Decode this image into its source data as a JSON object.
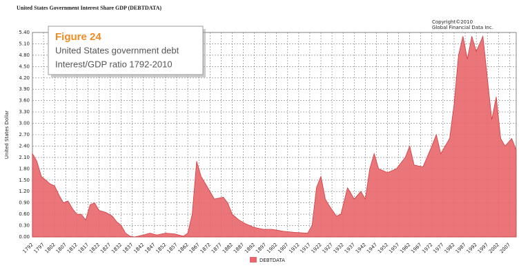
{
  "chart_data": {
    "type": "area",
    "title": "United States  Government Interest Share GDP (DEBTDATA)",
    "copyright": [
      "Copyright©2010",
      "Global Financial Data Inc."
    ],
    "figure_label": "Figure 24",
    "figure_caption": [
      "United States government debt",
      "Interest/GDP ratio 1792-2010"
    ],
    "y_label": "United States Dollar",
    "x": [
      1792,
      1794,
      1796,
      1798,
      1800,
      1802,
      1804,
      1806,
      1808,
      1810,
      1812,
      1814,
      1816,
      1818,
      1820,
      1822,
      1825,
      1828,
      1830,
      1832,
      1834,
      1836,
      1838,
      1842,
      1845,
      1848,
      1852,
      1856,
      1860,
      1862,
      1864,
      1866,
      1868,
      1870,
      1872,
      1874,
      1878,
      1880,
      1882,
      1885,
      1888,
      1892,
      1896,
      1900,
      1905,
      1910,
      1916,
      1918,
      1920,
      1922,
      1924,
      1926,
      1929,
      1931,
      1934,
      1937,
      1940,
      1942,
      1944,
      1946,
      1948,
      1952,
      1956,
      1960,
      1962,
      1964,
      1968,
      1972,
      1974,
      1976,
      1980,
      1982,
      1984,
      1986,
      1988,
      1990,
      1992,
      1995,
      1997,
      1999,
      2001,
      2003,
      2005,
      2008,
      2010
    ],
    "series": [
      {
        "name": "DEBTDATA",
        "color": "#e8676a",
        "values": [
          2.2,
          2.0,
          1.6,
          1.5,
          1.4,
          1.35,
          1.1,
          0.9,
          0.95,
          0.75,
          0.6,
          0.6,
          0.45,
          0.85,
          0.9,
          0.7,
          0.65,
          0.55,
          0.4,
          0.3,
          0.1,
          0.02,
          0.0,
          0.05,
          0.1,
          0.05,
          0.1,
          0.08,
          0.02,
          0.1,
          0.6,
          2.0,
          1.6,
          1.4,
          1.2,
          1.0,
          1.05,
          0.9,
          0.6,
          0.45,
          0.35,
          0.25,
          0.2,
          0.2,
          0.15,
          0.12,
          0.1,
          0.3,
          1.3,
          1.6,
          1.0,
          0.8,
          0.55,
          0.6,
          1.3,
          1.0,
          1.2,
          1.0,
          1.8,
          2.2,
          1.8,
          1.7,
          1.8,
          2.1,
          2.4,
          1.9,
          1.85,
          2.4,
          2.7,
          2.2,
          2.6,
          3.5,
          4.8,
          5.3,
          4.7,
          5.3,
          4.9,
          5.3,
          4.2,
          3.1,
          3.7,
          2.6,
          2.4,
          2.6,
          2.3
        ]
      }
    ],
    "xlim": [
      1792,
      2010
    ],
    "xticks": [
      1792,
      1797,
      1802,
      1807,
      1812,
      1817,
      1822,
      1827,
      1832,
      1837,
      1842,
      1847,
      1852,
      1857,
      1862,
      1867,
      1872,
      1877,
      1882,
      1887,
      1892,
      1897,
      1902,
      1907,
      1912,
      1917,
      1922,
      1927,
      1932,
      1937,
      1942,
      1947,
      1952,
      1957,
      1962,
      1967,
      1972,
      1977,
      1982,
      1987,
      1992,
      1997,
      2002,
      2007
    ],
    "ylim": [
      0,
      5.4
    ],
    "yticks": [
      {
        "value": 0,
        "label": "0.00"
      },
      {
        "value": 0.3,
        "label": "0.30"
      },
      {
        "value": 0.6,
        "label": "0.60"
      },
      {
        "value": 0.9,
        "label": "0.90"
      },
      {
        "value": 1.2,
        "label": "1.20"
      },
      {
        "value": 1.5,
        "label": "1.50"
      },
      {
        "value": 1.8,
        "label": "1.80"
      },
      {
        "value": 2.1,
        "label": "2.10"
      },
      {
        "value": 2.4,
        "label": "2.40"
      },
      {
        "value": 2.7,
        "label": "2.70"
      },
      {
        "value": 3.0,
        "label": "3.00"
      },
      {
        "value": 3.3,
        "label": "3.30"
      },
      {
        "value": 3.6,
        "label": "3.60"
      },
      {
        "value": 3.9,
        "label": "3.90"
      },
      {
        "value": 4.2,
        "label": "4.20"
      },
      {
        "value": 4.5,
        "label": "4.50"
      },
      {
        "value": 4.8,
        "label": "4.80"
      },
      {
        "value": 5.1,
        "label": "5.10"
      },
      {
        "value": 5.4,
        "label": "5.40"
      }
    ],
    "grid": true
  }
}
